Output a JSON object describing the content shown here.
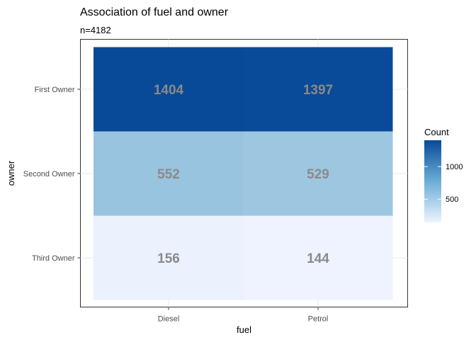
{
  "chart_data": {
    "type": "heatmap",
    "title": "Association of fuel and owner",
    "subtitle": "n=4182",
    "xlabel": "fuel",
    "ylabel": "owner",
    "x_categories": [
      "Diesel",
      "Petrol"
    ],
    "y_categories": [
      "First Owner",
      "Second Owner",
      "Third Owner"
    ],
    "values": [
      [
        1404,
        1397
      ],
      [
        552,
        529
      ],
      [
        156,
        144
      ]
    ],
    "legend": {
      "title": "Count",
      "breaks": [
        500,
        1000
      ],
      "range": [
        144,
        1404
      ],
      "low_color": "#eef3ff",
      "high_color": "#084a98",
      "position": "right"
    },
    "grid": true
  }
}
